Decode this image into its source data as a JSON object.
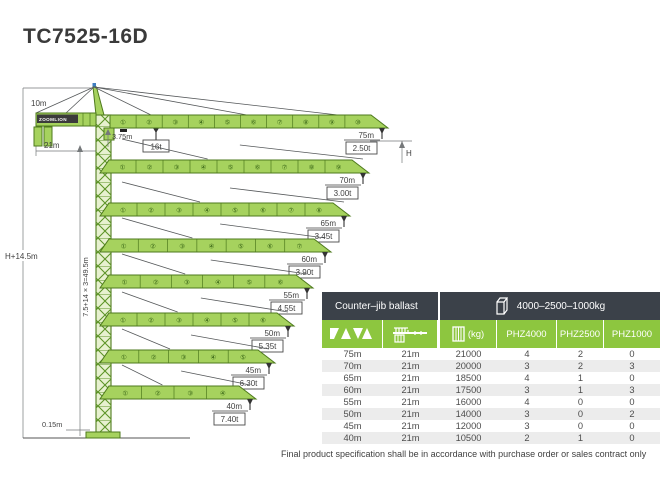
{
  "title": "TC7525-16D",
  "footer": "Final product specification shall be in accordance with purchase order or sales contract only",
  "colors": {
    "accent_green": "#8dc63f",
    "crane_green": "#a6d25e",
    "crane_outline": "#4e7a1d",
    "header_dark": "#3b4149",
    "row_alt": "#ececec"
  },
  "diagram": {
    "brand": "ZOOMLION",
    "dimensions": {
      "apex_height": "10m",
      "counter_jib_length": "21m",
      "trolley_offset": "3.75m",
      "max_hoist_capacity": "16t",
      "total_height": "H+14.5m",
      "tower_sections": "7.5+14 × 3=49.5m",
      "base_offset": "0.15m",
      "hook_height": "H"
    },
    "section_labels": [
      "①",
      "②",
      "③",
      "④",
      "⑤",
      "⑥",
      "⑦",
      "⑧",
      "⑨",
      "⑩"
    ],
    "jibs": [
      {
        "length_m": 75,
        "label": "75m",
        "tip_load": "2.50t",
        "sections": 10
      },
      {
        "length_m": 70,
        "label": "70m",
        "tip_load": "3.00t",
        "sections": 9
      },
      {
        "length_m": 65,
        "label": "65m",
        "tip_load": "3.45t",
        "sections": 8
      },
      {
        "length_m": 60,
        "label": "60m",
        "tip_load": "3.90t",
        "sections": 7
      },
      {
        "length_m": 55,
        "label": "55m",
        "tip_load": "4.55t",
        "sections": 6
      },
      {
        "length_m": 50,
        "label": "50m",
        "tip_load": "5.35t",
        "sections": 6
      },
      {
        "length_m": 45,
        "label": "45m",
        "tip_load": "6.30t",
        "sections": 5
      },
      {
        "length_m": 40,
        "label": "40m",
        "tip_load": "7.40t",
        "sections": 4
      }
    ]
  },
  "table": {
    "header_left": "Counter–jib ballast",
    "header_right": "4000–2500–1000kg",
    "kg_label": "(kg)",
    "phz_columns": [
      "PHZ4000",
      "PHZ2500",
      "PHZ1000"
    ],
    "icon_columns": [
      "jib-length-icon",
      "counter-jib-icon",
      "ballast-kg-icon"
    ],
    "rows": [
      [
        "75m",
        "21m",
        "21000",
        "4",
        "2",
        "0"
      ],
      [
        "70m",
        "21m",
        "20000",
        "3",
        "2",
        "3"
      ],
      [
        "65m",
        "21m",
        "18500",
        "4",
        "1",
        "0"
      ],
      [
        "60m",
        "21m",
        "17500",
        "3",
        "1",
        "3"
      ],
      [
        "55m",
        "21m",
        "16000",
        "4",
        "0",
        "0"
      ],
      [
        "50m",
        "21m",
        "14000",
        "3",
        "0",
        "2"
      ],
      [
        "45m",
        "21m",
        "12000",
        "3",
        "0",
        "0"
      ],
      [
        "40m",
        "21m",
        "10500",
        "2",
        "1",
        "0"
      ]
    ]
  }
}
